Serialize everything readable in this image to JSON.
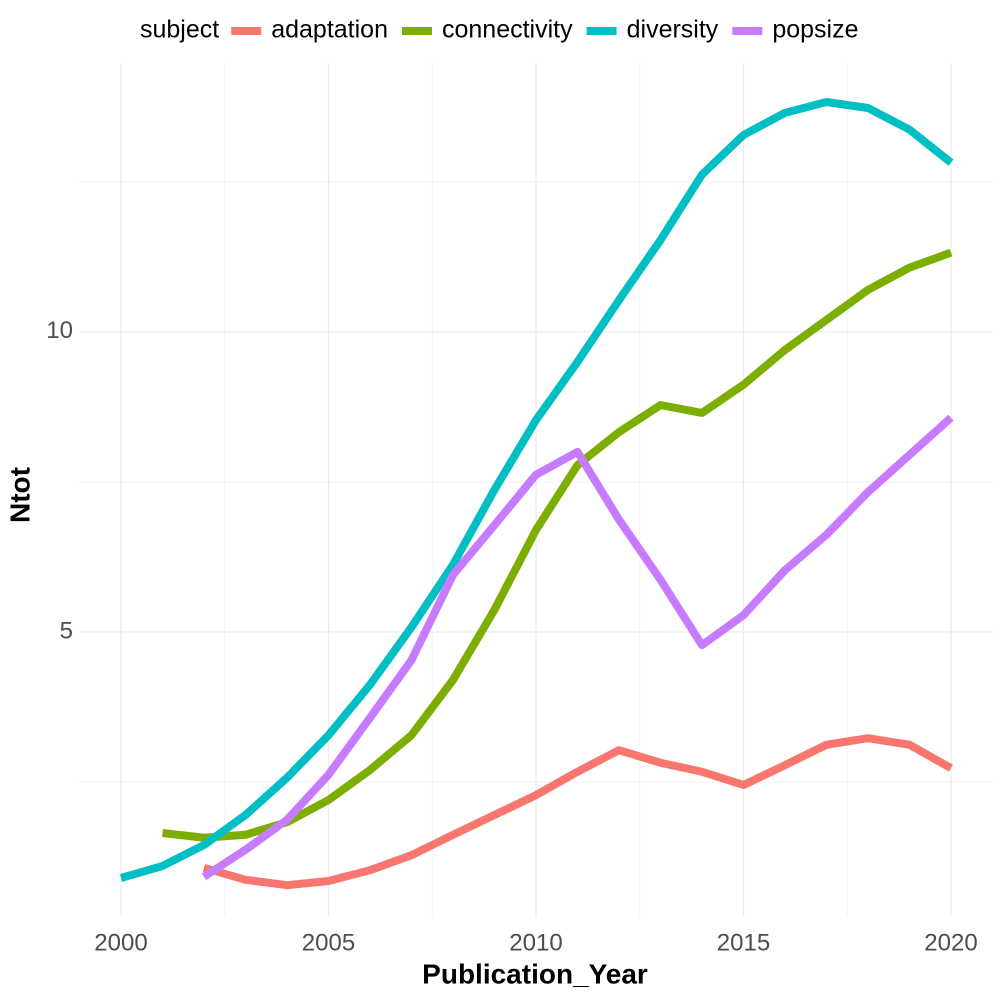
{
  "chart_data": {
    "type": "line",
    "x_label": "Publication_Year",
    "y_label": "Ntot",
    "legend_title": "subject",
    "legend_position": "top",
    "grid": true,
    "xlim": [
      1999,
      2021
    ],
    "xticks": [
      2000,
      2005,
      2010,
      2015,
      2020
    ],
    "xminor": [
      2002.5,
      2007.5,
      2012.5,
      2017.5
    ],
    "ylim": [
      0.25,
      14.48
    ],
    "yticks": [
      5,
      10
    ],
    "yminor": [
      2.5,
      7.5,
      12.5
    ],
    "x": [
      2000,
      2001,
      2002,
      2003,
      2004,
      2005,
      2006,
      2007,
      2008,
      2009,
      2010,
      2011,
      2012,
      2013,
      2014,
      2015,
      2016,
      2017,
      2018,
      2019,
      2020
    ],
    "series": [
      {
        "name": "adaptation",
        "color": "#F8766D",
        "values": [
          null,
          null,
          1.07,
          0.87,
          0.78,
          0.85,
          1.03,
          1.28,
          1.62,
          1.95,
          2.28,
          2.67,
          3.03,
          2.82,
          2.67,
          2.45,
          2.78,
          3.12,
          3.23,
          3.12,
          2.73
        ]
      },
      {
        "name": "connectivity",
        "color": "#7CAE00",
        "values": [
          null,
          1.65,
          1.57,
          1.62,
          1.83,
          2.2,
          2.7,
          3.28,
          4.2,
          5.37,
          6.7,
          7.78,
          8.33,
          8.78,
          8.65,
          9.12,
          9.7,
          10.2,
          10.7,
          11.07,
          11.32
        ]
      },
      {
        "name": "diversity",
        "color": "#00BFC4",
        "values": [
          0.9,
          1.1,
          1.45,
          1.95,
          2.57,
          3.28,
          4.12,
          5.08,
          6.12,
          7.37,
          8.53,
          9.5,
          10.53,
          11.53,
          12.62,
          13.28,
          13.65,
          13.83,
          13.73,
          13.37,
          12.82
        ]
      },
      {
        "name": "popsize",
        "color": "#C77CFF",
        "values": [
          null,
          null,
          0.92,
          1.37,
          1.87,
          2.62,
          3.57,
          4.53,
          5.95,
          6.78,
          7.62,
          8.0,
          6.87,
          5.87,
          4.78,
          5.28,
          6.03,
          6.62,
          7.33,
          7.95,
          8.57
        ]
      }
    ]
  }
}
